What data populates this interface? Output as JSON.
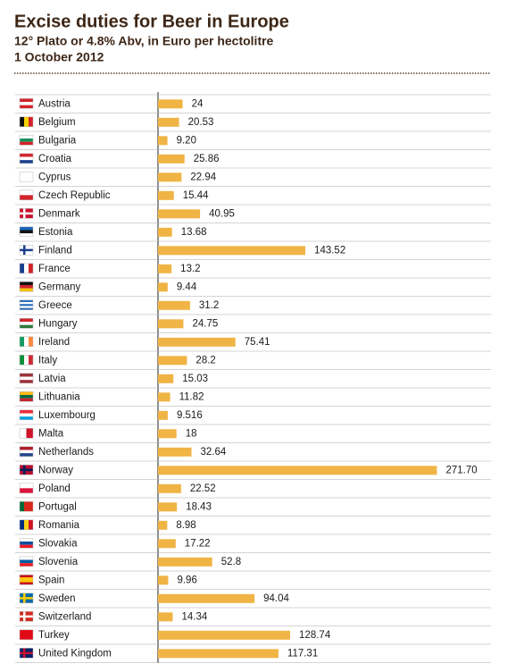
{
  "chart_data": {
    "type": "bar",
    "orientation": "horizontal",
    "title": "Excise duties for Beer in Europe",
    "subtitle": "12° Plato or 4.8% Abv, in Euro per hectolitre",
    "date": "1 October 2012",
    "color": "#f0b445",
    "categories": [
      "Austria",
      "Belgium",
      "Bulgaria",
      "Croatia",
      "Cyprus",
      "Czech Republic",
      "Denmark",
      "Estonia",
      "Finland",
      "France",
      "Germany",
      "Greece",
      "Hungary",
      "Ireland",
      "Italy",
      "Latvia",
      "Lithuania",
      "Luxembourg",
      "Malta",
      "Netherlands",
      "Norway",
      "Poland",
      "Portugal",
      "Romania",
      "Slovakia",
      "Slovenia",
      "Spain",
      "Sweden",
      "Switzerland",
      "Turkey",
      "United Kingdom"
    ],
    "values": [
      24,
      20.53,
      9.2,
      25.86,
      22.94,
      15.44,
      40.95,
      13.68,
      143.52,
      13.2,
      9.44,
      31.2,
      24.75,
      75.41,
      28.2,
      15.03,
      11.82,
      9.516,
      18,
      32.64,
      271.7,
      22.52,
      18.43,
      8.98,
      17.22,
      52.8,
      9.96,
      94.04,
      14.34,
      128.74,
      117.31
    ],
    "value_labels": [
      "24",
      "20.53",
      "9.20",
      "25.86",
      "22.94",
      "15.44",
      "40.95",
      "13.68",
      "143.52",
      "13.2",
      "9.44",
      "31.2",
      "24.75",
      "75.41",
      "28.2",
      "15.03",
      "11.82",
      "9.516",
      "18",
      "32.64",
      "271.70",
      "22.52",
      "18.43",
      "8.98",
      "17.22",
      "52.8",
      "9.96",
      "94.04",
      "14.34",
      "128.74",
      "117.31"
    ]
  }
}
